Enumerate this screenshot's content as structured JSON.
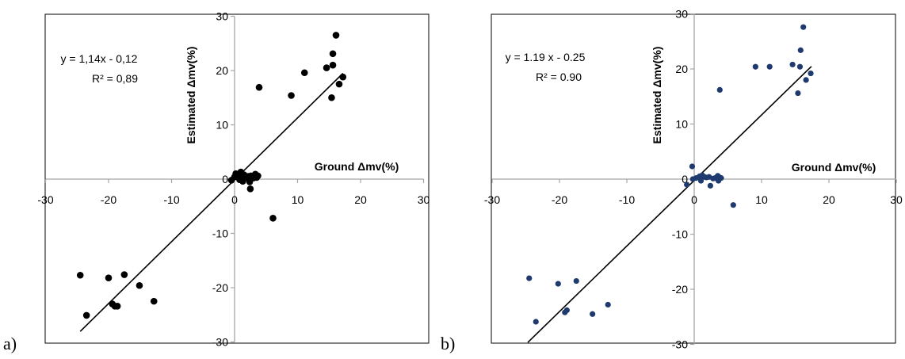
{
  "panels": [
    {
      "label": "a)"
    },
    {
      "label": "b)"
    }
  ],
  "chart_data": [
    {
      "type": "scatter",
      "panel": "a)",
      "xlabel": "Ground Δmv(%)",
      "ylabel": "Estimated Δmv(%)",
      "xlim": [
        -30,
        30
      ],
      "ylim": [
        -30,
        30
      ],
      "xticks": [
        -30,
        -20,
        -10,
        0,
        10,
        20,
        30
      ],
      "yticks": [
        -30,
        -20,
        -10,
        0,
        10,
        20,
        30
      ],
      "equation": "y = 1,14x - 0,12",
      "r2": "R² = 0,89",
      "fit": {
        "slope": 1.14,
        "intercept": -0.12,
        "x_range": [
          -24.5,
          17.2
        ]
      },
      "marker_color": "#000000",
      "grid": false,
      "points": [
        [
          -24.5,
          -17.7
        ],
        [
          -23.5,
          -25.1
        ],
        [
          -20.0,
          -18.2
        ],
        [
          -19.4,
          -23.0
        ],
        [
          -19.0,
          -23.4
        ],
        [
          -18.6,
          -23.4
        ],
        [
          -17.5,
          -17.6
        ],
        [
          -15.1,
          -19.6
        ],
        [
          -12.8,
          -22.5
        ],
        [
          -0.5,
          -0.2
        ],
        [
          0.0,
          0.4
        ],
        [
          0.2,
          1.0
        ],
        [
          0.5,
          0.5
        ],
        [
          0.8,
          -0.1
        ],
        [
          1.0,
          1.3
        ],
        [
          1.1,
          0.3
        ],
        [
          1.3,
          -0.4
        ],
        [
          1.5,
          0.8
        ],
        [
          1.9,
          0.3
        ],
        [
          2.2,
          0.5
        ],
        [
          2.4,
          -0.5
        ],
        [
          2.6,
          0.6
        ],
        [
          3.0,
          0.2
        ],
        [
          3.3,
          0.9
        ],
        [
          3.5,
          0.3
        ],
        [
          3.7,
          0.6
        ],
        [
          2.5,
          -1.8
        ],
        [
          3.9,
          16.9
        ],
        [
          6.1,
          -7.2
        ],
        [
          9.0,
          15.4
        ],
        [
          11.1,
          19.6
        ],
        [
          14.6,
          20.5
        ],
        [
          15.4,
          15.0
        ],
        [
          15.6,
          21.0
        ],
        [
          15.6,
          23.1
        ],
        [
          16.1,
          26.5
        ],
        [
          16.6,
          17.5
        ],
        [
          17.2,
          18.8
        ]
      ]
    },
    {
      "type": "scatter",
      "panel": "b)",
      "xlabel": "Ground Δmv(%)",
      "ylabel": "Estimated Δmv(%)",
      "xlim": [
        -30,
        30
      ],
      "ylim": [
        -30,
        30
      ],
      "xticks": [
        -30,
        -20,
        -10,
        0,
        10,
        20,
        30
      ],
      "yticks": [
        -30,
        -20,
        -10,
        0,
        10,
        20,
        30
      ],
      "equation": "y = 1.19 x - 0.25",
      "r2": "R² = 0.90",
      "fit": {
        "slope": 1.19,
        "intercept": -0.25,
        "x_range": [
          -24.7,
          17.4
        ]
      },
      "marker_color": "#1f3a6e",
      "grid": false,
      "points": [
        [
          -24.5,
          -18.0
        ],
        [
          -23.5,
          -25.9
        ],
        [
          -20.2,
          -19.0
        ],
        [
          -19.2,
          -24.2
        ],
        [
          -18.9,
          -23.8
        ],
        [
          -17.5,
          -18.5
        ],
        [
          -15.1,
          -24.5
        ],
        [
          -12.8,
          -22.8
        ],
        [
          -1.1,
          -1.0
        ],
        [
          -0.3,
          2.3
        ],
        [
          -0.2,
          0.0
        ],
        [
          0.3,
          0.2
        ],
        [
          0.8,
          0.5
        ],
        [
          1.0,
          -0.3
        ],
        [
          1.2,
          0.7
        ],
        [
          1.5,
          0.4
        ],
        [
          1.8,
          0.3
        ],
        [
          2.2,
          0.4
        ],
        [
          2.4,
          -1.2
        ],
        [
          2.8,
          0.1
        ],
        [
          3.1,
          0.2
        ],
        [
          3.5,
          0.6
        ],
        [
          3.6,
          -0.3
        ],
        [
          3.8,
          0.3
        ],
        [
          4.0,
          0.2
        ],
        [
          3.8,
          16.2
        ],
        [
          5.8,
          -4.7
        ],
        [
          9.1,
          20.4
        ],
        [
          11.2,
          20.4
        ],
        [
          14.6,
          20.8
        ],
        [
          15.4,
          15.6
        ],
        [
          15.7,
          20.4
        ],
        [
          15.8,
          23.4
        ],
        [
          16.2,
          27.6
        ],
        [
          16.6,
          18.0
        ],
        [
          17.3,
          19.2
        ]
      ]
    }
  ]
}
